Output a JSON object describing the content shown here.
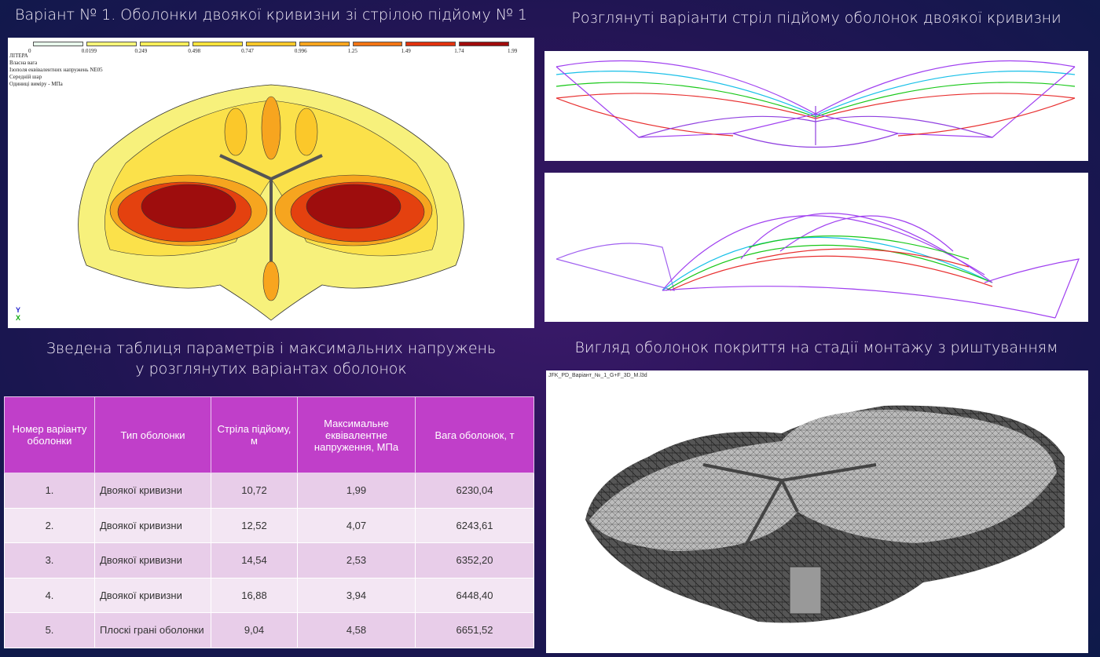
{
  "titles": {
    "top_left": "Варіант № 1. Оболонки двоякої кривизни зі стрілою підйому № 1",
    "top_right": "Розглянуті варіанти стріл підйому оболонок двоякої кривизни",
    "bottom_left_line1": "Зведена таблиця параметрів і максимальних напружень",
    "bottom_left_line2": "у розглянутих варіантах оболонок",
    "bottom_right": "Вигляд оболонок покриття на стадії монтажу з риштуванням"
  },
  "stress_plot": {
    "legend_values": [
      "0",
      "0.0199",
      "0.249",
      "0.498",
      "0.747",
      "0.996",
      "1.25",
      "1.49",
      "1.74",
      "1.99"
    ],
    "legend_colors": [
      "#e8f8ec",
      "#f6f57a",
      "#f9ee5a",
      "#fde33c",
      "#fbc82a",
      "#f8a51e",
      "#f27414",
      "#e0320e",
      "#a00c0c"
    ],
    "info": [
      "ЛІТЕРА",
      "Власна вага",
      "Ізополя еквівалентних напружень NE05",
      "Середній шар",
      "Одиниці виміру - МПа"
    ],
    "axis_y": "Y",
    "axis_x": "X"
  },
  "model_caption": "JFK_PD_Варіант_№_1_G+F_3D_M.l3d",
  "table": {
    "headers": [
      "Номер варіанту оболонки",
      "Тип оболонки",
      "Стріла підйому, м",
      "Максимальне еквівалентне напруження, МПа",
      "Вага оболонок, т"
    ],
    "rows": [
      [
        "1.",
        "Двоякої кривизни",
        "10,72",
        "1,99",
        "6230,04"
      ],
      [
        "2.",
        "Двоякої кривизни",
        "12,52",
        "4,07",
        "6243,61"
      ],
      [
        "3.",
        "Двоякої кривизни",
        "14,54",
        "2,53",
        "6352,20"
      ],
      [
        "4.",
        "Двоякої кривизни",
        "16,88",
        "3,94",
        "6448,40"
      ],
      [
        "5.",
        "Плоскі грані оболонки",
        "9,04",
        "4,58",
        "6651,52"
      ]
    ]
  }
}
